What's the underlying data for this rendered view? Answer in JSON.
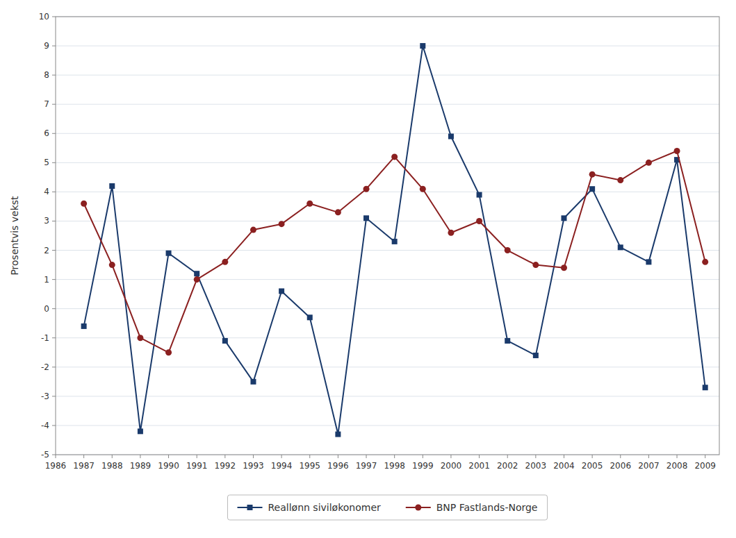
{
  "chart_data": {
    "type": "line",
    "y_label": "Prosentvis vekst",
    "x": [
      1987,
      1988,
      1989,
      1990,
      1991,
      1992,
      1993,
      1994,
      1995,
      1996,
      1997,
      1998,
      1999,
      2000,
      2001,
      2002,
      2003,
      2004,
      2005,
      2006,
      2007,
      2008,
      2009
    ],
    "series": [
      {
        "name": "Reallønn siviløkonomer",
        "color": "#1a3a6b",
        "marker": "square",
        "values": [
          -0.6,
          4.2,
          -4.2,
          1.9,
          1.2,
          -1.1,
          -2.5,
          0.6,
          -0.3,
          -4.3,
          3.1,
          2.3,
          9.0,
          5.9,
          3.9,
          -1.1,
          -1.6,
          3.1,
          4.1,
          2.1,
          1.6,
          5.1,
          -2.7
        ]
      },
      {
        "name": "BNP Fastlands-Norge",
        "color": "#8b2020",
        "marker": "circle",
        "values": [
          3.6,
          1.5,
          -1.0,
          -1.5,
          1.0,
          1.6,
          2.7,
          2.9,
          3.6,
          3.3,
          4.1,
          5.2,
          4.1,
          2.6,
          3.0,
          2.0,
          1.5,
          1.4,
          4.6,
          4.4,
          5.0,
          5.4,
          1.6
        ]
      }
    ],
    "xlim": [
      1986,
      2009.5
    ],
    "xticks": [
      1986,
      1987,
      1988,
      1989,
      1990,
      1991,
      1992,
      1993,
      1994,
      1995,
      1996,
      1997,
      1998,
      1999,
      2000,
      2001,
      2002,
      2003,
      2004,
      2005,
      2006,
      2007,
      2008,
      2009
    ],
    "ylim": [
      -5,
      10
    ],
    "yticks": [
      -5,
      -4,
      -3,
      -2,
      -1,
      0,
      1,
      2,
      3,
      4,
      5,
      6,
      7,
      8,
      9,
      10
    ],
    "grid": "y",
    "legend": "bottom"
  }
}
